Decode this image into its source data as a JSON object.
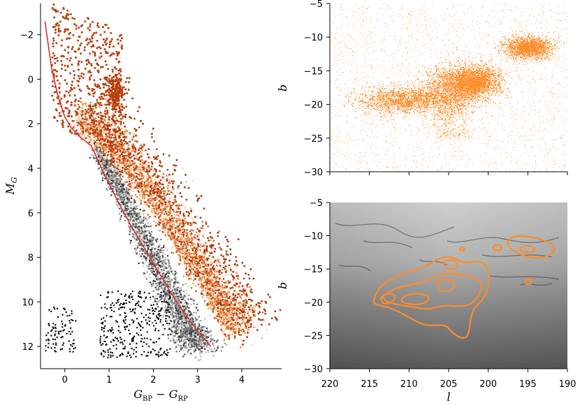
{
  "chart_data": [
    {
      "type": "scatter",
      "name": "color-magnitude-diagram",
      "xlabel": "G_BP − G_RP",
      "ylabel": "M_G",
      "xlim": [
        -0.55,
        4.9
      ],
      "ylim": [
        13.0,
        -3.4
      ],
      "y_inverted": true,
      "x_ticks": [
        "0",
        "1",
        "2",
        "3",
        "4"
      ],
      "x_tick_values": [
        0,
        1,
        2,
        3,
        4
      ],
      "y_ticks": [
        "−2",
        "0",
        "2",
        "4",
        "6",
        "8",
        "10",
        "12"
      ],
      "y_tick_values": [
        -2,
        0,
        2,
        4,
        6,
        8,
        10,
        12
      ],
      "grid": false,
      "series": [
        {
          "kind": "density",
          "color": "#6b6b6b",
          "x": [
            0.65,
            1.2,
            1.8,
            2.3,
            2.7,
            3.0
          ],
          "y": [
            3.1,
            5.0,
            7.4,
            9.5,
            11.2,
            12.0
          ]
        },
        {
          "kind": "density",
          "color": "#e8641b",
          "x": [
            0.0,
            0.7,
            1.6,
            2.4,
            3.0,
            3.5
          ],
          "y": [
            1.5,
            3.0,
            5.2,
            7.7,
            9.6,
            11.2
          ]
        },
        {
          "kind": "scatter",
          "color": "#000000",
          "x": [
            -0.4,
            -0.2,
            0.1,
            1.0,
            1.5,
            2.0
          ],
          "y": [
            10.5,
            11.2,
            11.8,
            10.5,
            11.0,
            12.0
          ]
        },
        {
          "kind": "line",
          "color": "#d42f2f",
          "x": [
            -0.45,
            -0.3,
            -0.15,
            0.0,
            0.15,
            0.35,
            0.6,
            0.9,
            1.2,
            1.5,
            1.8,
            2.1,
            2.4,
            2.7,
            3.0,
            3.3
          ],
          "y": [
            -2.6,
            -0.5,
            0.8,
            1.7,
            2.2,
            2.6,
            3.0,
            4.3,
            5.5,
            6.6,
            7.6,
            8.6,
            9.6,
            10.5,
            11.3,
            12.0
          ]
        }
      ]
    },
    {
      "type": "scatter",
      "name": "sky-distribution",
      "xlabel": "",
      "ylabel": "b",
      "xlim": [
        220,
        190
      ],
      "ylim": [
        -30,
        -5
      ],
      "y_ticks": [
        "−5",
        "−10",
        "−15",
        "−20",
        "−25",
        "−30"
      ],
      "y_tick_values": [
        -5,
        -10,
        -15,
        -20,
        -25,
        -30
      ],
      "x_tick_values": [
        220,
        215,
        210,
        205,
        200,
        195,
        190
      ],
      "grid": false,
      "series": [
        {
          "kind": "points",
          "color": "#ff8c28",
          "clusters": [
            {
              "l": 210.5,
              "b": -19.3,
              "spread_l": 3.0,
              "spread_b": 1.0
            },
            {
              "l": 204.0,
              "b": -17.5,
              "spread_l": 2.2,
              "spread_b": 1.8
            },
            {
              "l": 201.5,
              "b": -16.5,
              "spread_l": 1.5,
              "spread_b": 1.0
            },
            {
              "l": 195.0,
              "b": -11.5,
              "spread_l": 1.5,
              "spread_b": 0.8
            }
          ]
        }
      ]
    },
    {
      "type": "heatmap",
      "name": "extinction-map-with-contours",
      "xlabel": "l",
      "ylabel": "b",
      "xlim": [
        220,
        190
      ],
      "ylim": [
        -30,
        -5
      ],
      "x_ticks": [
        "220",
        "215",
        "210",
        "205",
        "200",
        "195",
        "190"
      ],
      "x_tick_values": [
        220,
        215,
        210,
        205,
        200,
        195,
        190
      ],
      "y_ticks": [
        "−5",
        "−10",
        "−15",
        "−20",
        "−25",
        "−30"
      ],
      "y_tick_values": [
        -5,
        -10,
        -15,
        -20,
        -25,
        -30
      ],
      "grid": false,
      "contour_color": "#ff8c28",
      "background": "grayscale dust map"
    }
  ]
}
